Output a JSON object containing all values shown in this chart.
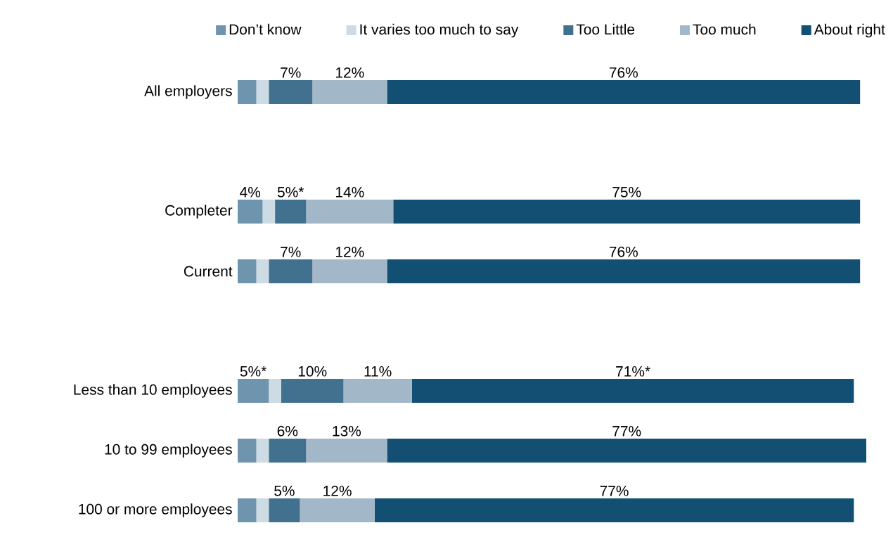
{
  "chart_data": {
    "type": "bar",
    "orientation": "horizontal",
    "stacked": true,
    "legend": "top",
    "categories": [
      "All employers",
      null,
      "Completer",
      "Current",
      null,
      "Less than 10 employees",
      "10 to 99 employees",
      "100 or more employees"
    ],
    "series": [
      {
        "name": "Don’t know",
        "color": "#6f94ae",
        "values": [
          3,
          null,
          4,
          3,
          null,
          5,
          3,
          3
        ],
        "value_labels": [
          null,
          null,
          "4%",
          null,
          null,
          "5%*",
          null,
          null
        ]
      },
      {
        "name": "It varies too much to say",
        "color": "#cddbe4",
        "values": [
          2,
          null,
          2,
          2,
          null,
          2,
          2,
          2
        ],
        "value_labels": [
          null,
          null,
          null,
          null,
          null,
          null,
          null,
          null
        ]
      },
      {
        "name": "Too Little",
        "color": "#41718f",
        "values": [
          7,
          null,
          5,
          7,
          null,
          10,
          6,
          5
        ],
        "value_labels": [
          "7%",
          null,
          "5%*",
          "7%",
          null,
          "10%",
          "6%",
          "5%"
        ]
      },
      {
        "name": "Too much",
        "color": "#a2b8c8",
        "values": [
          12,
          null,
          14,
          12,
          null,
          11,
          13,
          12
        ],
        "value_labels": [
          "12%",
          null,
          "14%",
          "12%",
          null,
          "11%",
          "13%",
          "12%"
        ]
      },
      {
        "name": "About right",
        "color": "#134f73",
        "values": [
          76,
          null,
          75,
          76,
          null,
          71,
          77,
          77
        ],
        "value_labels": [
          "76%",
          null,
          "75%",
          "76%",
          null,
          "71%*",
          "77%",
          "77%"
        ]
      }
    ]
  }
}
